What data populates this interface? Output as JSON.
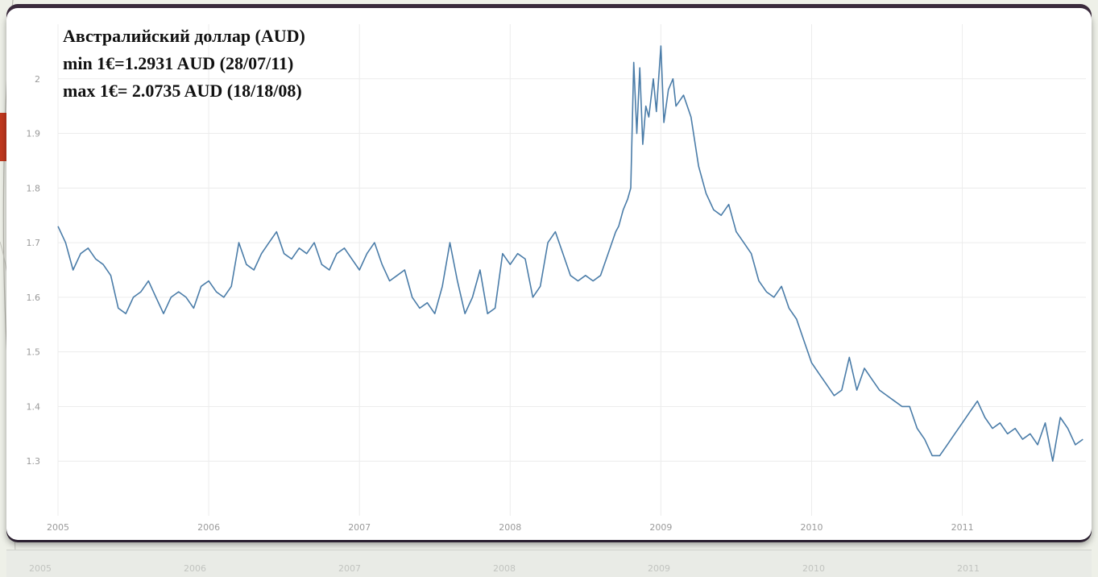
{
  "chart_data": {
    "type": "line",
    "title_lines": [
      "Австралийский доллар (AUD)",
      "min 1€=1.2931 AUD (28/07/11)",
      "max 1€= 2.0735 AUD (18/18/08)"
    ],
    "xlabel": "",
    "ylabel": "",
    "xlim": [
      2005.0,
      2011.82
    ],
    "ylim": [
      1.2,
      2.1
    ],
    "x_ticks": [
      2005,
      2006,
      2007,
      2008,
      2009,
      2010,
      2011
    ],
    "x_tick_labels": [
      "2005",
      "2006",
      "2007",
      "2008",
      "2009",
      "2010",
      "2011"
    ],
    "y_ticks": [
      1.3,
      1.4,
      1.5,
      1.6,
      1.7,
      1.8,
      1.9,
      2.0
    ],
    "y_tick_labels": [
      "1.3",
      "1.4",
      "1.5",
      "1.6",
      "1.7",
      "1.8",
      "1.9",
      "2"
    ],
    "grid": true,
    "line_color": "#4a7ca8",
    "series": [
      {
        "x": [
          2005.0,
          2005.05,
          2005.1,
          2005.15,
          2005.2,
          2005.25,
          2005.3,
          2005.35,
          2005.4,
          2005.45,
          2005.5,
          2005.55,
          2005.6,
          2005.65,
          2005.7,
          2005.75,
          2005.8,
          2005.85,
          2005.9,
          2005.95,
          2006.0,
          2006.05,
          2006.1,
          2006.15,
          2006.2,
          2006.25,
          2006.3,
          2006.35,
          2006.4,
          2006.45,
          2006.5,
          2006.55,
          2006.6,
          2006.65,
          2006.7,
          2006.75,
          2006.8,
          2006.85,
          2006.9,
          2006.95,
          2007.0,
          2007.05,
          2007.1,
          2007.15,
          2007.2,
          2007.25,
          2007.3,
          2007.35,
          2007.4,
          2007.45,
          2007.5,
          2007.55,
          2007.6,
          2007.65,
          2007.7,
          2007.75,
          2007.8,
          2007.85,
          2007.9,
          2007.95,
          2008.0,
          2008.05,
          2008.1,
          2008.15,
          2008.2,
          2008.25,
          2008.3,
          2008.35,
          2008.4,
          2008.45,
          2008.5,
          2008.55,
          2008.6,
          2008.65,
          2008.7,
          2008.72,
          2008.75,
          2008.78,
          2008.8,
          2008.82,
          2008.84,
          2008.86,
          2008.88,
          2008.9,
          2008.92,
          2008.95,
          2008.97,
          2009.0,
          2009.02,
          2009.05,
          2009.08,
          2009.1,
          2009.15,
          2009.2,
          2009.25,
          2009.3,
          2009.35,
          2009.4,
          2009.45,
          2009.5,
          2009.55,
          2009.6,
          2009.65,
          2009.7,
          2009.75,
          2009.8,
          2009.85,
          2009.9,
          2009.95,
          2010.0,
          2010.05,
          2010.1,
          2010.15,
          2010.2,
          2010.25,
          2010.3,
          2010.35,
          2010.4,
          2010.45,
          2010.5,
          2010.55,
          2010.6,
          2010.65,
          2010.7,
          2010.75,
          2010.8,
          2010.85,
          2010.9,
          2010.95,
          2011.0,
          2011.05,
          2011.1,
          2011.15,
          2011.2,
          2011.25,
          2011.3,
          2011.35,
          2011.4,
          2011.45,
          2011.5,
          2011.55,
          2011.6,
          2011.65,
          2011.7,
          2011.75,
          2011.8
        ],
        "y": [
          1.73,
          1.7,
          1.65,
          1.68,
          1.69,
          1.67,
          1.66,
          1.64,
          1.58,
          1.57,
          1.6,
          1.61,
          1.63,
          1.6,
          1.57,
          1.6,
          1.61,
          1.6,
          1.58,
          1.62,
          1.63,
          1.61,
          1.6,
          1.62,
          1.7,
          1.66,
          1.65,
          1.68,
          1.7,
          1.72,
          1.68,
          1.67,
          1.69,
          1.68,
          1.7,
          1.66,
          1.65,
          1.68,
          1.69,
          1.67,
          1.65,
          1.68,
          1.7,
          1.66,
          1.63,
          1.64,
          1.65,
          1.6,
          1.58,
          1.59,
          1.57,
          1.62,
          1.7,
          1.63,
          1.57,
          1.6,
          1.65,
          1.57,
          1.58,
          1.68,
          1.66,
          1.68,
          1.67,
          1.6,
          1.62,
          1.7,
          1.72,
          1.68,
          1.64,
          1.63,
          1.64,
          1.63,
          1.64,
          1.68,
          1.72,
          1.73,
          1.76,
          1.78,
          1.8,
          2.03,
          1.9,
          2.02,
          1.88,
          1.95,
          1.93,
          2.0,
          1.94,
          2.06,
          1.92,
          1.98,
          2.0,
          1.95,
          1.97,
          1.93,
          1.84,
          1.79,
          1.76,
          1.75,
          1.77,
          1.72,
          1.7,
          1.68,
          1.63,
          1.61,
          1.6,
          1.62,
          1.58,
          1.56,
          1.52,
          1.48,
          1.46,
          1.44,
          1.42,
          1.43,
          1.49,
          1.43,
          1.47,
          1.45,
          1.43,
          1.42,
          1.41,
          1.4,
          1.4,
          1.36,
          1.34,
          1.31,
          1.31,
          1.33,
          1.35,
          1.37,
          1.39,
          1.41,
          1.38,
          1.36,
          1.37,
          1.35,
          1.36,
          1.34,
          1.35,
          1.33,
          1.37,
          1.3,
          1.38,
          1.36,
          1.33,
          1.34
        ]
      }
    ]
  },
  "background": {
    "ghost_axis_labels": [
      "2005",
      "2006",
      "2007",
      "2008",
      "2009",
      "2010",
      "2011"
    ]
  }
}
